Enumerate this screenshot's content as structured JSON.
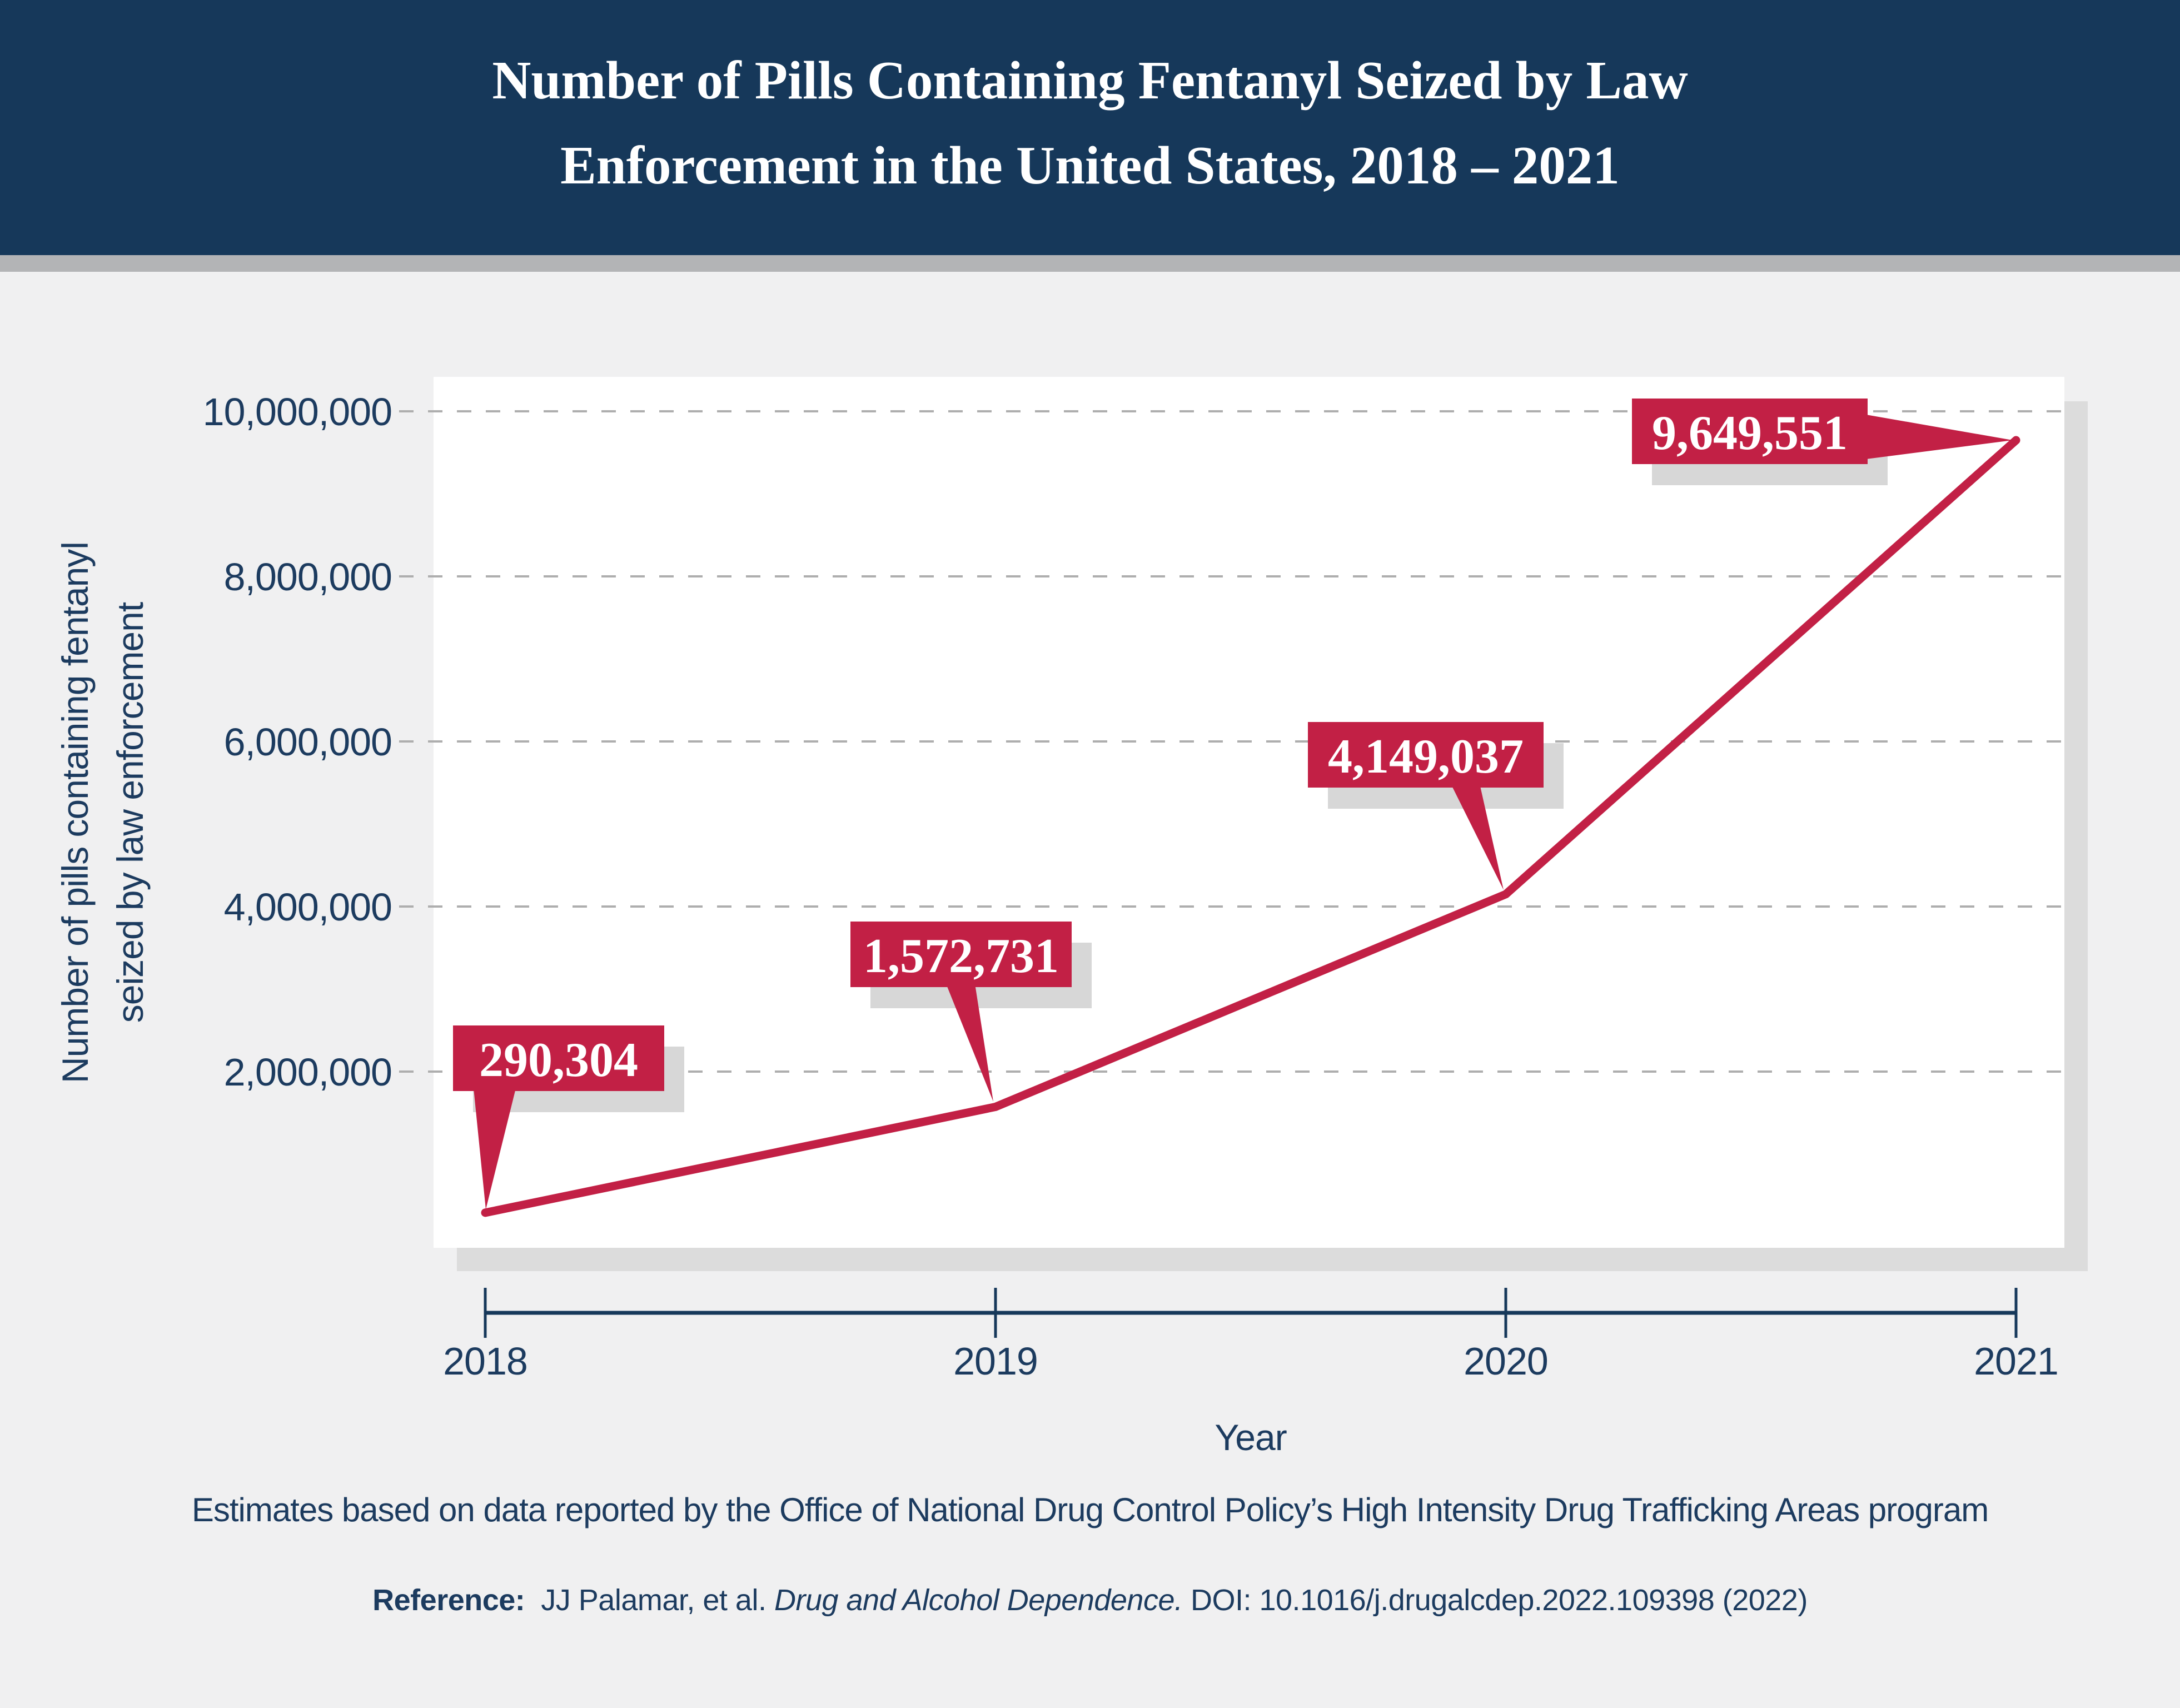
{
  "header": {
    "title_line1": "Number of Pills Containing Fentanyl Seized by Law",
    "title_line2": "Enforcement in the United States, 2018 – 2021"
  },
  "chart_data": {
    "type": "line",
    "title": "Number of Pills Containing Fentanyl Seized by Law Enforcement in the United States, 2018 – 2021",
    "categories": [
      "2018",
      "2019",
      "2020",
      "2021"
    ],
    "values": [
      290304,
      1572731,
      4149037,
      9649551
    ],
    "data_labels": [
      "290,304",
      "1,572,731",
      "4,149,037",
      "9,649,551"
    ],
    "xlabel": "Year",
    "ylabel_line1": "Number of pills containing fentanyl",
    "ylabel_line2": "seized by law enforcement",
    "y_ticks": [
      10000000,
      8000000,
      6000000,
      4000000,
      2000000
    ],
    "y_tick_labels": [
      "10,000,000",
      "8,000,000",
      "6,000,000",
      "4,000,000",
      "2,000,000"
    ],
    "ylim": [
      0,
      10500000
    ],
    "grid": "horizontal-dashed",
    "legend": "none",
    "line_color": "#C22045",
    "navy_color": "#16385A",
    "text_color": "#1C3B5F",
    "plot_background": "#FFFFFF",
    "page_background": "#F0F0F1"
  },
  "footnote": "Estimates based on data reported by the Office of National Drug Control Policy’s High Intensity Drug Trafficking Areas program",
  "reference": {
    "label": "Reference:",
    "authors": "  JJ Palamar, et al. ",
    "journal": "Drug and Alcohol Dependence.",
    "doi": " DOI: 10.1016/j.drugalcdep.2022.109398 (2022)"
  }
}
